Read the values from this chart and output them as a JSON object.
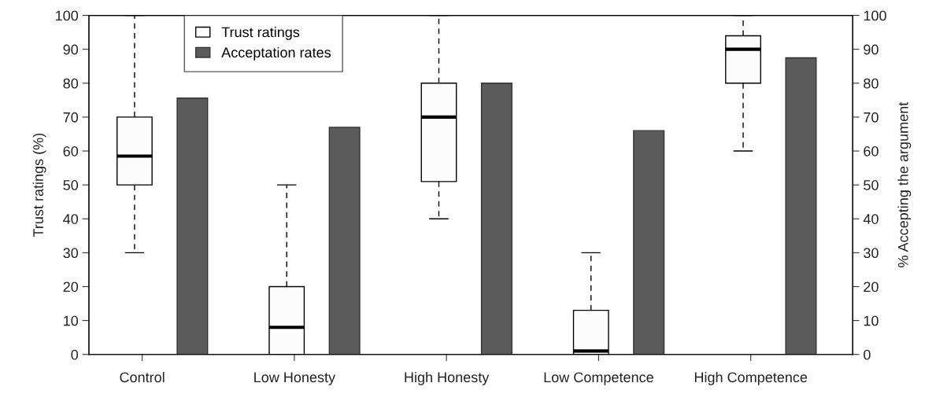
{
  "chart_data": {
    "type": "bar",
    "categories": [
      "Control",
      "Low Honesty",
      "High Honesty",
      "Low Competence",
      "High Competence"
    ],
    "ylabel": "Trust ratings (%)",
    "y2label": "% Accepting the argument",
    "ylim": [
      0,
      100
    ],
    "yticks": [
      0,
      10,
      20,
      30,
      40,
      50,
      60,
      70,
      80,
      90,
      100
    ],
    "y2lim": [
      0,
      100
    ],
    "y2ticks": [
      0,
      10,
      20,
      30,
      40,
      50,
      60,
      70,
      80,
      90,
      100
    ],
    "grid": false,
    "legend": "top left",
    "series": [
      {
        "name": "Trust ratings",
        "type": "box",
        "color": "#fcfcfc",
        "boxes": [
          {
            "low": 30,
            "q1": 50,
            "median": 58.5,
            "q3": 70,
            "high": 100
          },
          {
            "low": 0,
            "q1": 0,
            "median": 8,
            "q3": 20,
            "high": 50
          },
          {
            "low": 40,
            "q1": 51,
            "median": 70,
            "q3": 80,
            "high": 100
          },
          {
            "low": 0,
            "q1": 0,
            "median": 1,
            "q3": 13,
            "high": 30
          },
          {
            "low": 60,
            "q1": 80,
            "median": 90,
            "q3": 94,
            "high": 100
          }
        ]
      },
      {
        "name": "Acceptation rates",
        "axis": "y2",
        "color": "#5b5b5b",
        "values": [
          75.6,
          67,
          80,
          66,
          87.5
        ]
      }
    ]
  }
}
